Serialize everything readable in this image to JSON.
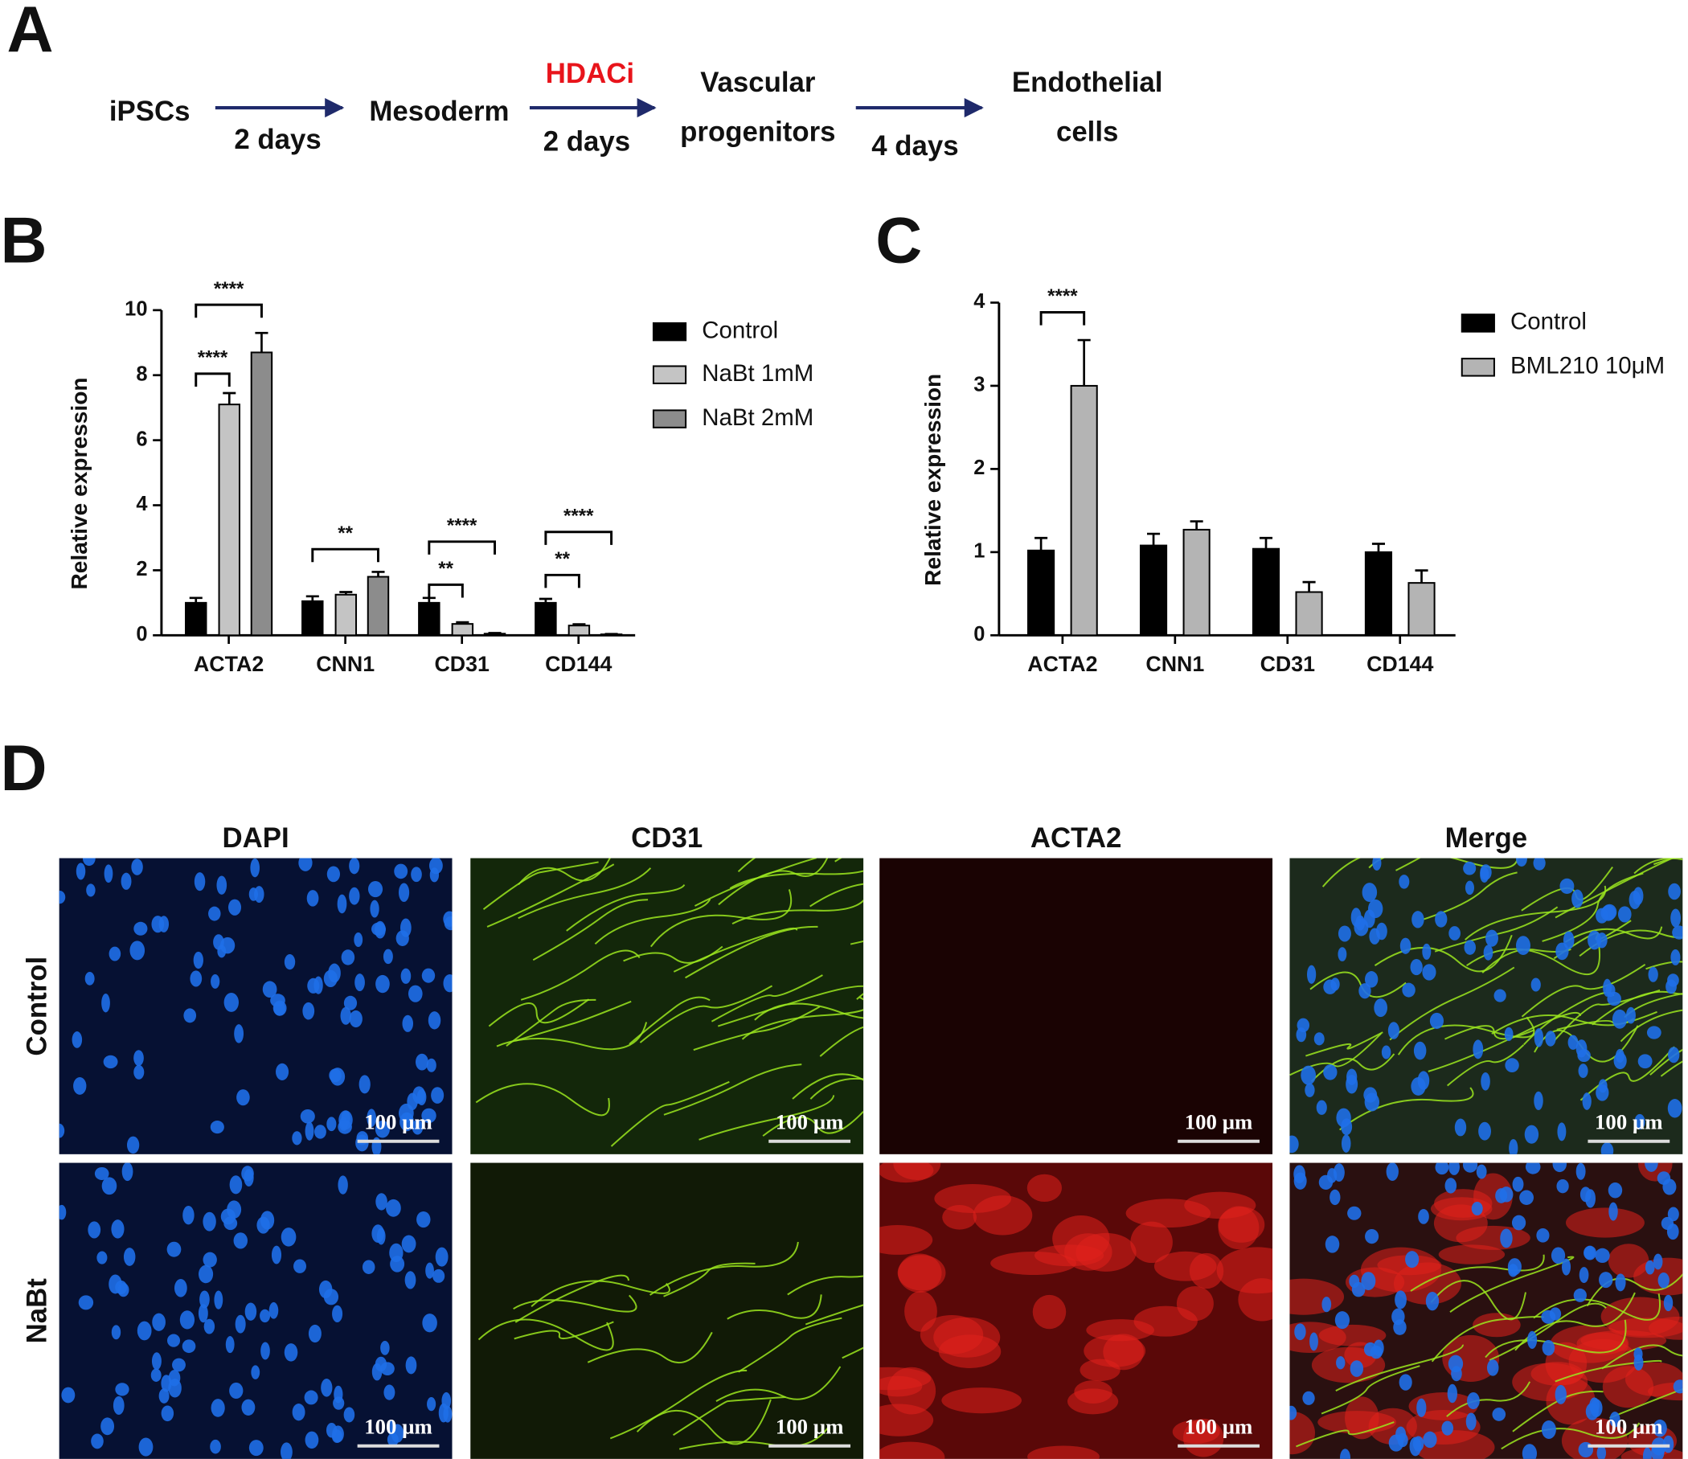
{
  "panel_labels": [
    "A",
    "B",
    "C",
    "D"
  ],
  "protocol": {
    "steps": [
      [
        "iPSCs"
      ],
      [
        "Mesoderm"
      ],
      [
        "Vascular",
        "progenitors"
      ],
      [
        "Endothelial",
        "cells"
      ]
    ],
    "transitions": [
      {
        "label": "2 days"
      },
      {
        "treatment": "HDACi",
        "label": "2 days"
      },
      {
        "label": "4 days"
      }
    ]
  },
  "chart_data": [
    {
      "type": "bar",
      "y_label": "Relative expression",
      "categories": [
        "ACTA2",
        "CNN1",
        "CD31",
        "CD144"
      ],
      "series": [
        {
          "name": "Control",
          "color": "#000000",
          "values": [
            1.0,
            1.05,
            1.0,
            1.0
          ],
          "errors": [
            0.15,
            0.15,
            0.15,
            0.12
          ]
        },
        {
          "name": "NaBt 1mM",
          "color": "#c4c4c4",
          "values": [
            7.1,
            1.25,
            0.35,
            0.3
          ],
          "errors": [
            0.35,
            0.08,
            0.05,
            0.04
          ]
        },
        {
          "name": "NaBt 2mM",
          "color": "#8c8c8c",
          "values": [
            8.7,
            1.8,
            0.05,
            0.03
          ],
          "errors": [
            0.6,
            0.15,
            0.02,
            0.01
          ]
        }
      ],
      "ylim": [
        0,
        10
      ],
      "yticks": [
        0,
        2,
        4,
        6,
        8,
        10
      ],
      "annotations": [
        "****",
        "****",
        "**",
        "**",
        "****",
        "**",
        "****"
      ]
    },
    {
      "type": "bar",
      "y_label": "Relative expression",
      "categories": [
        "ACTA2",
        "CNN1",
        "CD31",
        "CD144"
      ],
      "series": [
        {
          "name": "Control",
          "color": "#000000",
          "values": [
            1.02,
            1.08,
            1.04,
            1.0
          ],
          "errors": [
            0.15,
            0.14,
            0.13,
            0.1
          ]
        },
        {
          "name": "BML210  10μM",
          "color": "#b4b4b4",
          "values": [
            3.0,
            1.27,
            0.52,
            0.63
          ],
          "errors": [
            0.55,
            0.1,
            0.12,
            0.15
          ]
        }
      ],
      "ylim": [
        0,
        4
      ],
      "yticks": [
        0,
        1,
        2,
        3,
        4
      ],
      "annotations": [
        "****"
      ]
    }
  ],
  "images": {
    "columns": [
      "DAPI",
      "CD31",
      "ACTA2",
      "Merge"
    ],
    "rows": [
      "Control",
      "NaBt"
    ],
    "scale_bar": "100 µm"
  }
}
